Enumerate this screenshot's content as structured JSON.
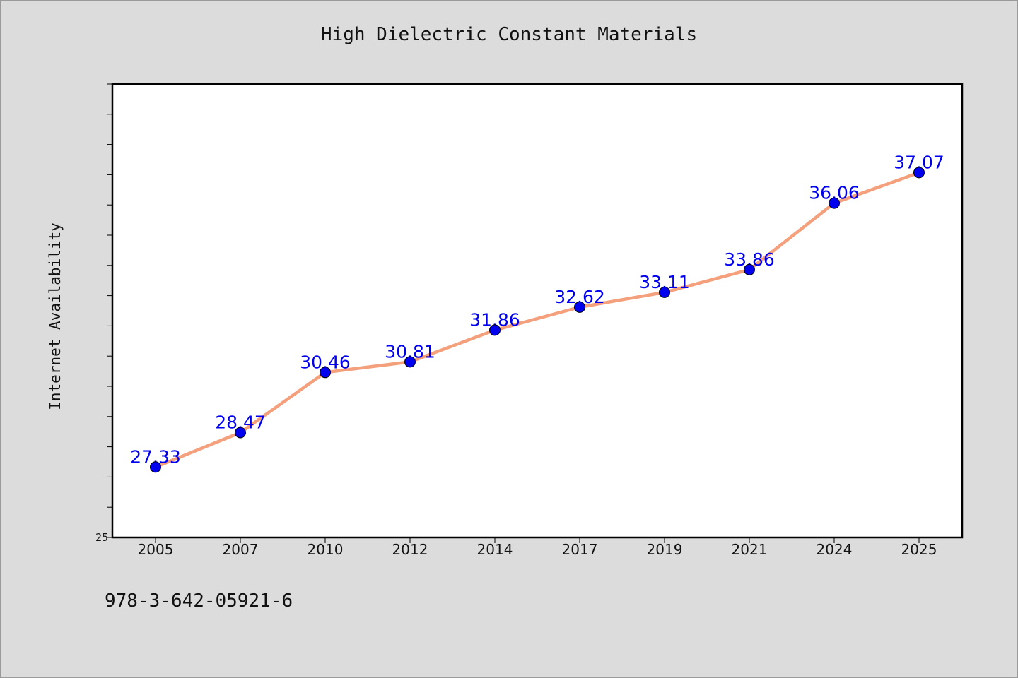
{
  "chart_data": {
    "type": "line",
    "title": "High Dielectric Constant Materials",
    "xlabel": "",
    "ylabel": "Internet Availability",
    "categories": [
      "2005",
      "2007",
      "2010",
      "2012",
      "2014",
      "2017",
      "2019",
      "2021",
      "2024",
      "2025"
    ],
    "series": [
      {
        "values": [
          27.33,
          28.47,
          30.46,
          30.81,
          31.86,
          32.62,
          33.11,
          33.86,
          36.06,
          37.07
        ]
      }
    ],
    "ylim": [
      25,
      40
    ],
    "y_tick_labels": [
      "25"
    ],
    "y_minor_tick_count": 15,
    "grid": false,
    "legend": "none",
    "line_color": "#f4a07c",
    "marker_color": "#0000ee",
    "label_color": "#0000ee",
    "plot_background": "#ffffff",
    "page_background": "#dcdcdc"
  },
  "footer": {
    "identifier": "978-3-642-05921-6"
  }
}
